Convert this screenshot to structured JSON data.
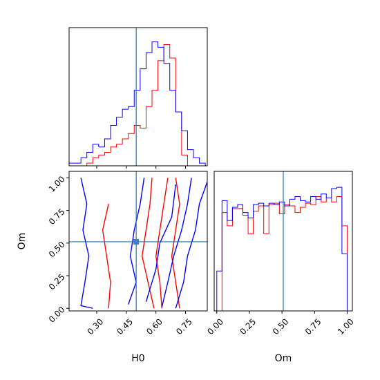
{
  "chart_data": [
    {
      "type": "histogram",
      "panel": "H0 marginal",
      "x_range": [
        0.16,
        0.86
      ],
      "truth": 0.5,
      "bin_edges": [
        0.16,
        0.19,
        0.22,
        0.25,
        0.28,
        0.31,
        0.34,
        0.37,
        0.4,
        0.43,
        0.46,
        0.49,
        0.52,
        0.55,
        0.58,
        0.61,
        0.64,
        0.67,
        0.7,
        0.73,
        0.76,
        0.79,
        0.82,
        0.85
      ],
      "series": [
        {
          "color": "#ff0000",
          "values": [
            0,
            0,
            0,
            1,
            3,
            4,
            5,
            7,
            8,
            10,
            12,
            15,
            14,
            22,
            28,
            39,
            45,
            40,
            20,
            4,
            0,
            0,
            0
          ]
        },
        {
          "color": "#0000ff",
          "values": [
            1,
            1,
            3,
            5,
            8,
            7,
            10,
            15,
            18,
            21,
            22,
            28,
            36,
            42,
            46,
            44,
            38,
            28,
            20,
            13,
            6,
            3,
            1
          ]
        }
      ]
    },
    {
      "type": "contour",
      "panel": "H0 vs Om",
      "xlabel": "H0",
      "ylabel": "Om",
      "x_ticks": [
        "0.30",
        "0.45",
        "0.60",
        "0.75"
      ],
      "y_ticks": [
        "0.00",
        "0.25",
        "0.50",
        "0.75",
        "1.00"
      ],
      "x_range": [
        0.16,
        0.86
      ],
      "y_range": [
        -0.02,
        1.05
      ],
      "truth": [
        0.5,
        0.51
      ],
      "series": [
        {
          "color": "#ff0000",
          "contours": [
            [
              [
                0.58,
                1.0
              ],
              [
                0.57,
                0.8
              ],
              [
                0.55,
                0.6
              ],
              [
                0.53,
                0.4
              ],
              [
                0.56,
                0.2
              ],
              [
                0.59,
                0.0
              ]
            ],
            [
              [
                0.66,
                1.0
              ],
              [
                0.64,
                0.8
              ],
              [
                0.62,
                0.6
              ],
              [
                0.6,
                0.4
              ],
              [
                0.62,
                0.2
              ],
              [
                0.63,
                0.0
              ]
            ],
            [
              [
                0.7,
                1.0
              ],
              [
                0.72,
                0.8
              ],
              [
                0.7,
                0.6
              ],
              [
                0.68,
                0.4
              ],
              [
                0.7,
                0.2
              ],
              [
                0.72,
                0.0
              ]
            ],
            [
              [
                0.36,
                0.8
              ],
              [
                0.33,
                0.6
              ],
              [
                0.35,
                0.4
              ],
              [
                0.37,
                0.2
              ],
              [
                0.36,
                0.0
              ]
            ]
          ]
        },
        {
          "color": "#0000ff",
          "contours": [
            [
              [
                0.22,
                1.0
              ],
              [
                0.25,
                0.8
              ],
              [
                0.23,
                0.6
              ],
              [
                0.26,
                0.4
              ],
              [
                0.24,
                0.2
              ],
              [
                0.22,
                0.02
              ],
              [
                0.28,
                0.0
              ]
            ],
            [
              [
                0.54,
                1.0
              ],
              [
                0.52,
                0.8
              ],
              [
                0.49,
                0.6
              ],
              [
                0.47,
                0.4
              ],
              [
                0.5,
                0.2
              ],
              [
                0.46,
                0.03
              ]
            ],
            [
              [
                0.7,
                0.95
              ],
              [
                0.68,
                0.7
              ],
              [
                0.62,
                0.5
              ],
              [
                0.6,
                0.3
              ],
              [
                0.55,
                0.05
              ]
            ],
            [
              [
                0.78,
                1.0
              ],
              [
                0.76,
                0.8
              ],
              [
                0.73,
                0.6
              ],
              [
                0.69,
                0.4
              ],
              [
                0.66,
                0.2
              ],
              [
                0.63,
                0.01
              ]
            ],
            [
              [
                0.86,
                0.97
              ],
              [
                0.82,
                0.8
              ],
              [
                0.8,
                0.6
              ],
              [
                0.76,
                0.4
              ],
              [
                0.74,
                0.2
              ],
              [
                0.7,
                0.0
              ]
            ]
          ]
        }
      ]
    },
    {
      "type": "histogram",
      "panel": "Om marginal",
      "xlabel": "Om",
      "x_ticks": [
        "0.00",
        "0.25",
        "0.50",
        "0.75",
        "1.00"
      ],
      "x_range": [
        -0.02,
        1.04
      ],
      "truth": 0.51,
      "bin_edges": [
        0.0,
        0.04,
        0.08,
        0.12,
        0.16,
        0.2,
        0.24,
        0.28,
        0.32,
        0.36,
        0.4,
        0.44,
        0.48,
        0.52,
        0.56,
        0.6,
        0.64,
        0.68,
        0.72,
        0.76,
        0.8,
        0.84,
        0.88,
        0.92,
        0.96,
        1.0
      ],
      "series": [
        {
          "color": "#ff0000",
          "values": [
            0.0,
            0.74,
            0.64,
            0.77,
            0.77,
            0.72,
            0.58,
            0.75,
            0.79,
            0.58,
            0.8,
            0.81,
            0.73,
            0.8,
            0.79,
            0.74,
            0.78,
            0.81,
            0.8,
            0.86,
            0.82,
            0.85,
            0.82,
            0.86,
            0.64
          ]
        },
        {
          "color": "#0000ff",
          "values": [
            0.3,
            0.83,
            0.68,
            0.78,
            0.8,
            0.74,
            0.7,
            0.8,
            0.81,
            0.79,
            0.81,
            0.8,
            0.82,
            0.79,
            0.84,
            0.86,
            0.83,
            0.82,
            0.86,
            0.84,
            0.88,
            0.85,
            0.92,
            0.93,
            0.43
          ]
        }
      ]
    }
  ]
}
